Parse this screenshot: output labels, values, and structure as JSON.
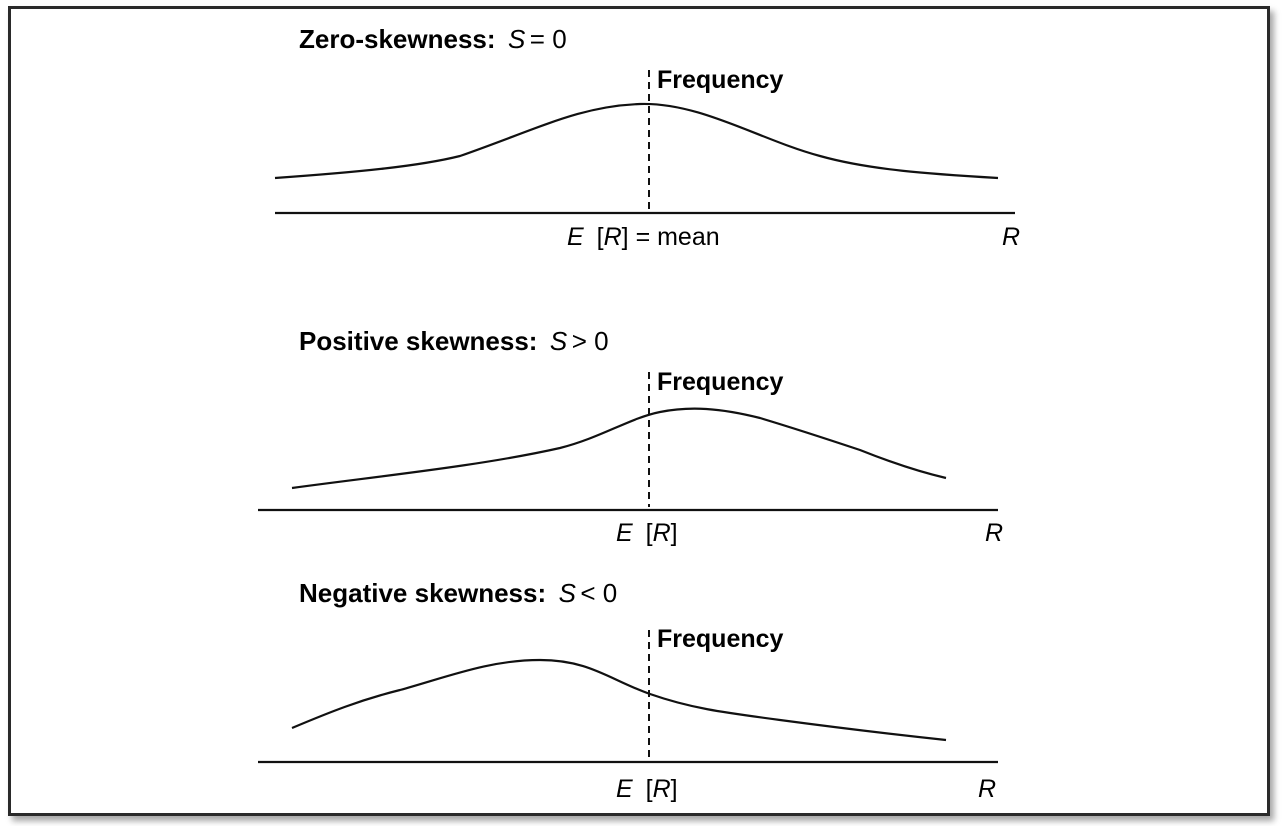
{
  "panels": [
    {
      "title_bold": "Zero-skewness:",
      "title_var": "S",
      "title_rel": " = 0",
      "frequency_label": "Frequency",
      "mean_label_E": "E",
      "mean_label_R": "R",
      "mean_label_suffix": " = mean",
      "axis_label": "R"
    },
    {
      "title_bold": "Positive skewness:",
      "title_var": "S",
      "title_rel": " > 0",
      "frequency_label": "Frequency",
      "mean_label_E": "E",
      "mean_label_R": "R",
      "mean_label_suffix": "",
      "axis_label": "R"
    },
    {
      "title_bold": "Negative skewness:",
      "title_var": "S",
      "title_rel": " < 0",
      "frequency_label": "Frequency",
      "mean_label_E": "E",
      "mean_label_R": "R",
      "mean_label_suffix": "",
      "axis_label": "R"
    }
  ]
}
